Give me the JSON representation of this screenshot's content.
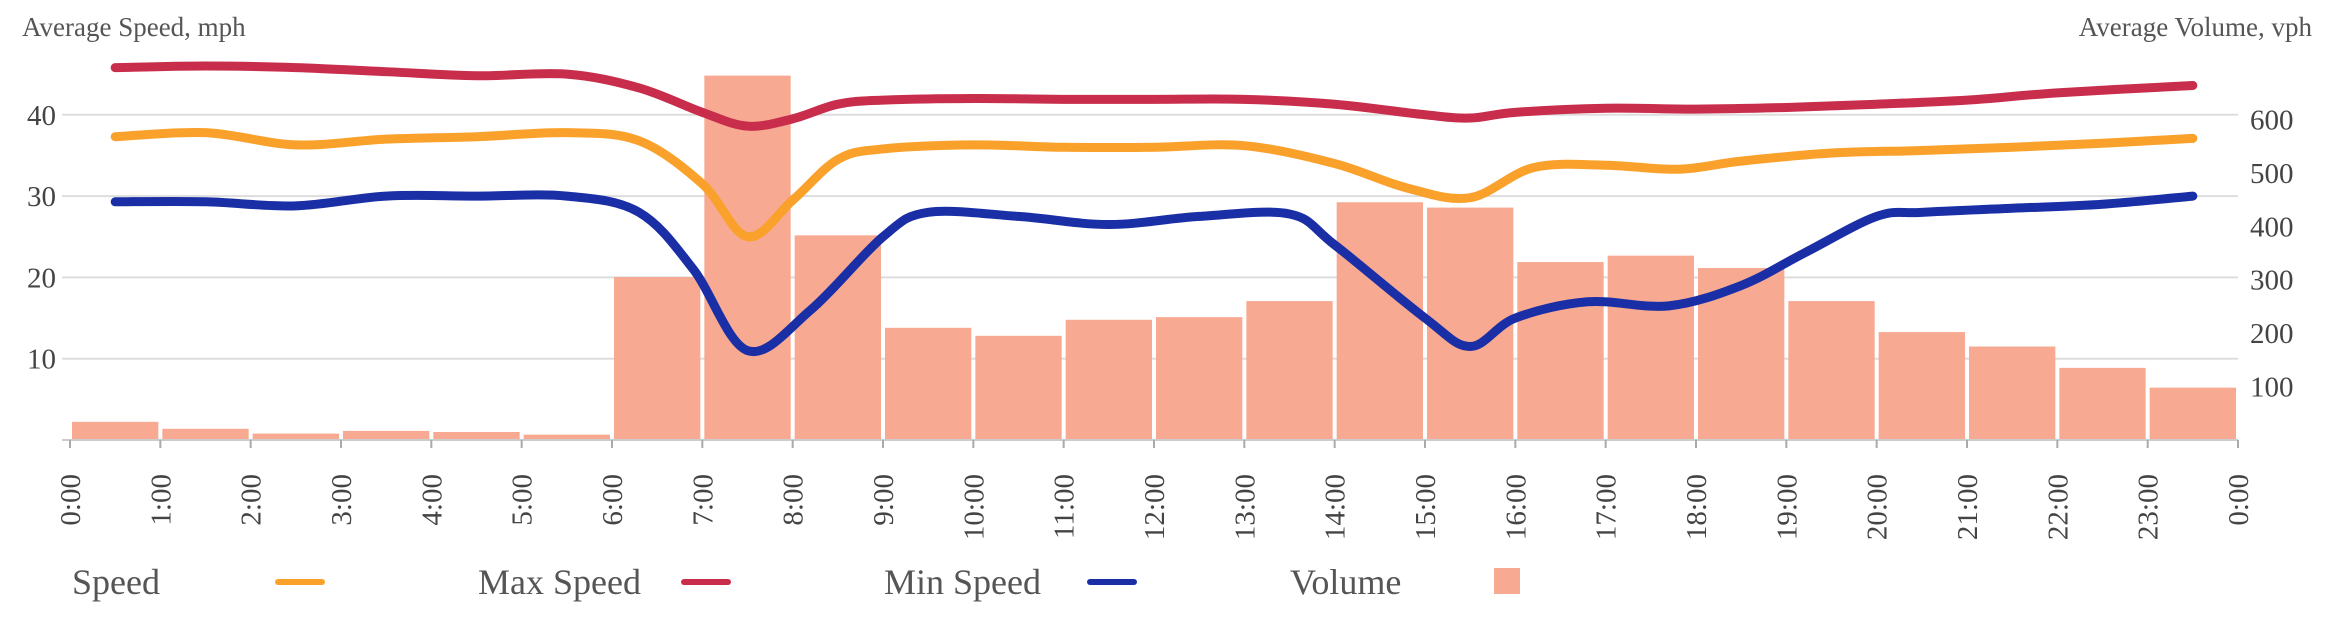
{
  "chart_data": {
    "type": "bar",
    "title": "",
    "left_axis": {
      "label": "Average Speed, mph",
      "ticks": [
        10,
        20,
        30,
        40
      ],
      "ylim": [
        0,
        46
      ]
    },
    "right_axis": {
      "label": "Average Volume, vph",
      "ticks": [
        100,
        200,
        300,
        400,
        500,
        600
      ],
      "ylim": [
        0,
        700
      ]
    },
    "x_ticks": [
      "0:00",
      "1:00",
      "2:00",
      "3:00",
      "4:00",
      "5:00",
      "6:00",
      "7:00",
      "8:00",
      "9:00",
      "10:00",
      "11:00",
      "12:00",
      "13:00",
      "14:00",
      "15:00",
      "16:00",
      "17:00",
      "18:00",
      "19:00",
      "20:00",
      "21:00",
      "22:00",
      "23:00",
      "0:00"
    ],
    "grid": true,
    "legend_position": "bottom",
    "series": [
      {
        "name": "Volume",
        "type": "bar",
        "axis": "right",
        "color": "#f7a992",
        "x": [
          0.5,
          1.5,
          2.5,
          3.5,
          4.5,
          5.5,
          6.5,
          7.5,
          8.5,
          9.5,
          10.5,
          11.5,
          12.5,
          13.5,
          14.5,
          15.5,
          16.5,
          17.5,
          18.5,
          19.5,
          20.5,
          21.5,
          22.5,
          23.5
        ],
        "values": [
          34,
          21,
          12,
          17,
          15,
          10,
          305,
          682,
          383,
          210,
          195,
          225,
          230,
          260,
          445,
          435,
          333,
          345,
          322,
          260,
          202,
          175,
          135,
          98
        ]
      },
      {
        "name": "Speed",
        "type": "line",
        "axis": "left",
        "color": "#f9a12b",
        "x": [
          0.5,
          1.5,
          2.5,
          3.5,
          4.5,
          5.5,
          6.3,
          7,
          7.5,
          8,
          8.5,
          9,
          10,
          11,
          12,
          13,
          14,
          14.8,
          15.5,
          16.2,
          17,
          17.8,
          18.5,
          19.5,
          20.5,
          21.5,
          22.5,
          23.5
        ],
        "values": [
          37.3,
          37.8,
          36.3,
          37.0,
          37.3,
          37.8,
          36.8,
          31.5,
          25.0,
          29.5,
          34.5,
          35.8,
          36.3,
          36.0,
          36.0,
          36.2,
          34.0,
          31.0,
          29.8,
          33.5,
          33.8,
          33.3,
          34.3,
          35.3,
          35.6,
          36.0,
          36.5,
          37.1
        ]
      },
      {
        "name": "Max Speed",
        "type": "line",
        "axis": "left",
        "color": "#c82d4c",
        "x": [
          0.5,
          1.5,
          2.5,
          3.5,
          4.5,
          5.5,
          6.3,
          7,
          7.5,
          8,
          8.5,
          9,
          10,
          11,
          12,
          13,
          14,
          15,
          15.5,
          16,
          17,
          18,
          19,
          20,
          21,
          22,
          23.5
        ],
        "values": [
          45.8,
          46.0,
          45.8,
          45.3,
          44.8,
          45.0,
          43.3,
          40.3,
          38.6,
          39.5,
          41.3,
          41.8,
          42.0,
          41.9,
          41.9,
          41.9,
          41.3,
          40.0,
          39.6,
          40.3,
          40.8,
          40.7,
          40.9,
          41.3,
          41.8,
          42.7,
          43.6
        ]
      },
      {
        "name": "Min Speed",
        "type": "line",
        "axis": "left",
        "color": "#1a2fa6",
        "x": [
          0.5,
          1.5,
          2.5,
          3.5,
          4.5,
          5.5,
          6.3,
          6.9,
          7.5,
          8.2,
          9,
          9.5,
          10.5,
          11.5,
          12.5,
          13.5,
          14,
          15,
          15.5,
          16,
          16.8,
          17.7,
          18.5,
          19.2,
          20,
          20.5,
          21.5,
          22.5,
          23.5
        ],
        "values": [
          29.3,
          29.3,
          28.8,
          30.0,
          30.0,
          30.0,
          28.0,
          21.0,
          11.0,
          16.0,
          25.0,
          28.0,
          27.5,
          26.5,
          27.5,
          27.8,
          24.0,
          15.0,
          11.5,
          15.0,
          17.0,
          16.5,
          19.0,
          23.0,
          27.5,
          28.0,
          28.5,
          29.0,
          30.0
        ]
      }
    ],
    "legend": [
      {
        "label": "Speed",
        "kind": "line",
        "color": "#f9a12b"
      },
      {
        "label": "Max Speed",
        "kind": "line",
        "color": "#c82d4c"
      },
      {
        "label": "Min Speed",
        "kind": "line",
        "color": "#1a2fa6"
      },
      {
        "label": "Volume",
        "kind": "box",
        "color": "#f7a992"
      }
    ]
  }
}
